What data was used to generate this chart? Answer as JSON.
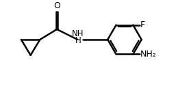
{
  "bg_color": "#ffffff",
  "line_color": "#000000",
  "line_width": 1.8,
  "label_F": "F",
  "label_NH": "NH",
  "label_H": "H",
  "label_O": "O",
  "label_NH2": "NH₂",
  "figsize": [
    2.76,
    1.29
  ],
  "dpi": 100,
  "xlim": [
    0,
    10
  ],
  "ylim": [
    0,
    4.5
  ]
}
